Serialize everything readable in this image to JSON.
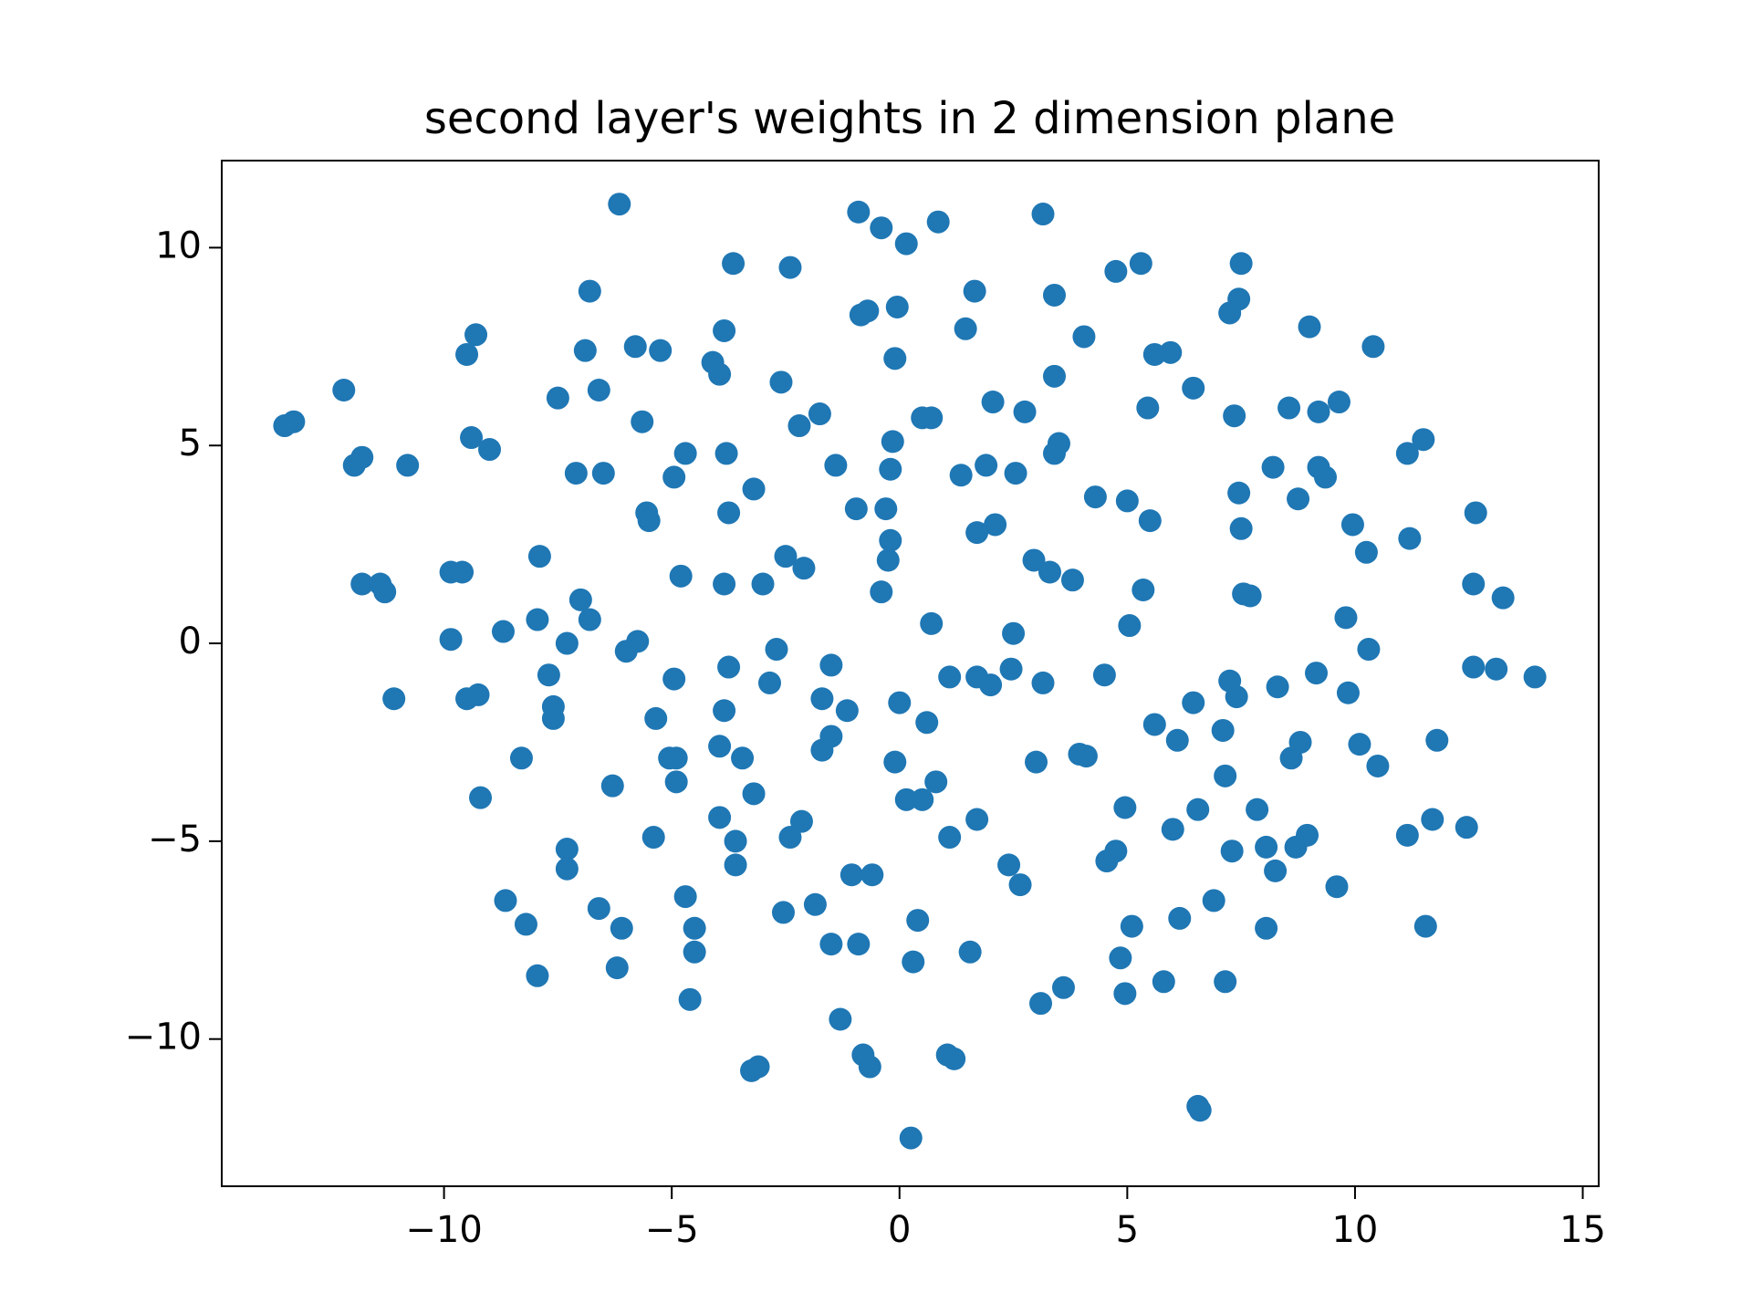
{
  "chart_data": {
    "type": "scatter",
    "title": "second layer's weights in 2 dimension plane",
    "color": "#1f77b4",
    "xlim": [
      -14.88,
      15.35
    ],
    "ylim": [
      -13.72,
      12.2
    ],
    "xticks": [
      {
        "value": -10,
        "label": "−10"
      },
      {
        "value": -5,
        "label": "−5"
      },
      0,
      5,
      10,
      15
    ],
    "yticks": [
      {
        "value": -10,
        "label": "−10"
      },
      {
        "value": -5,
        "label": "−5"
      },
      0,
      5,
      10
    ],
    "x": [
      -13.5,
      -13.3,
      -12.2,
      -11.97,
      -11.8,
      -10.8,
      -11.8,
      -11.4,
      -11.3,
      -11.1,
      -9.5,
      -9.3,
      -9.4,
      -9.0,
      -9.85,
      -9.6,
      -9.85,
      -9.5,
      -9.25,
      -9.2,
      -8.7,
      -8.3,
      -8.65,
      -8.2,
      -7.95,
      -7.9,
      -7.95,
      -7.7,
      -7.6,
      -7.6,
      -7.5,
      -7.1,
      -7.3,
      -7.3,
      -7.3,
      -7.0,
      -6.9,
      -6.8,
      -6.8,
      -6.6,
      -6.5,
      -6.6,
      -6.3,
      -6.15,
      -6.1,
      -6.2,
      -6.0,
      -5.75,
      -5.8,
      -5.65,
      -5.55,
      -5.5,
      -5.25,
      -5.35,
      -5.4,
      -4.95,
      -4.7,
      -4.8,
      -4.95,
      -5.05,
      -4.9,
      -4.9,
      -4.7,
      -4.5,
      -4.5,
      -4.6,
      -4.1,
      -3.95,
      -3.85,
      -3.65,
      -3.8,
      -3.75,
      -3.85,
      -3.75,
      -3.85,
      -3.95,
      -3.95,
      -3.6,
      -3.6,
      -3.45,
      -3.2,
      -3.2,
      -3.25,
      -3.1,
      -3.0,
      -2.85,
      -2.7,
      -2.6,
      -2.5,
      -2.4,
      -2.4,
      -2.55,
      -2.2,
      -2.15,
      -2.1,
      -1.75,
      -1.7,
      -1.7,
      -1.5,
      -1.5,
      -1.4,
      -1.85,
      -1.5,
      -1.3,
      -1.15,
      -0.95,
      -1.05,
      -0.9,
      -0.85,
      -0.7,
      -0.9,
      -0.8,
      -0.65,
      -0.6,
      -0.4,
      -0.3,
      -0.4,
      -0.25,
      -0.2,
      -0.2,
      -0.15,
      -0.1,
      -0.05,
      0.0,
      -0.1,
      0.15,
      0.15,
      0.5,
      0.3,
      0.4,
      0.25,
      0.5,
      0.7,
      0.6,
      0.7,
      0.8,
      0.85,
      1.1,
      1.1,
      1.05,
      1.2,
      1.35,
      1.45,
      1.65,
      1.55,
      1.7,
      1.7,
      1.7,
      1.9,
      2.05,
      2.0,
      2.1,
      2.4,
      2.45,
      2.5,
      2.55,
      2.65,
      2.75,
      2.95,
      3.0,
      3.1,
      3.15,
      3.15,
      3.3,
      3.4,
      3.4,
      3.4,
      3.5,
      3.6,
      3.8,
      3.95,
      4.1,
      4.05,
      4.3,
      4.5,
      4.55,
      4.75,
      4.75,
      4.85,
      4.95,
      4.95,
      5.0,
      5.05,
      5.1,
      5.3,
      5.35,
      5.45,
      5.5,
      5.6,
      5.6,
      5.8,
      5.95,
      6.0,
      6.1,
      6.15,
      6.45,
      6.45,
      6.55,
      6.55,
      6.6,
      6.9,
      7.1,
      7.15,
      7.15,
      7.25,
      7.25,
      7.3,
      7.35,
      7.4,
      7.45,
      7.45,
      7.5,
      7.5,
      7.55,
      7.7,
      7.85,
      8.05,
      8.05,
      8.2,
      8.3,
      8.25,
      8.55,
      8.6,
      8.7,
      8.75,
      8.8,
      8.95,
      9.0,
      9.15,
      9.2,
      9.2,
      9.35,
      9.65,
      9.6,
      9.8,
      9.85,
      9.95,
      10.1,
      10.25,
      10.3,
      10.4,
      10.5,
      11.15,
      11.15,
      11.2,
      11.5,
      11.55,
      11.7,
      11.8,
      12.45,
      12.6,
      12.6,
      12.65,
      13.1,
      13.25,
      13.95
    ],
    "values": [
      5.5,
      5.6,
      6.4,
      4.5,
      4.7,
      4.5,
      1.5,
      1.5,
      1.3,
      -1.4,
      7.3,
      7.8,
      5.2,
      4.9,
      1.8,
      1.8,
      0.1,
      -1.4,
      -1.3,
      -3.9,
      0.3,
      -2.9,
      -6.5,
      -7.1,
      -8.4,
      2.2,
      0.6,
      -0.8,
      -1.6,
      -1.9,
      6.2,
      4.3,
      0.0,
      -5.2,
      -5.7,
      1.1,
      7.4,
      0.6,
      8.9,
      6.4,
      4.3,
      -6.7,
      -3.6,
      11.1,
      -7.2,
      -8.2,
      -0.2,
      0.05,
      7.5,
      5.6,
      3.3,
      3.1,
      7.4,
      -1.9,
      -4.9,
      4.2,
      4.8,
      1.7,
      -0.9,
      -2.9,
      -2.9,
      -3.5,
      -6.4,
      -7.2,
      -7.8,
      -9.0,
      7.1,
      6.8,
      7.9,
      9.6,
      4.8,
      3.3,
      1.5,
      -0.6,
      -1.7,
      -2.6,
      -4.4,
      -5.0,
      -5.6,
      -2.9,
      3.9,
      -3.8,
      -10.8,
      -10.7,
      1.5,
      -1.0,
      -0.15,
      6.6,
      2.2,
      9.5,
      -4.9,
      -6.8,
      5.5,
      -4.5,
      1.9,
      5.8,
      -1.4,
      -2.7,
      -2.35,
      -0.55,
      4.5,
      -6.6,
      -7.6,
      -9.5,
      -1.7,
      3.4,
      -5.85,
      10.9,
      8.3,
      8.4,
      -7.6,
      -10.4,
      -10.7,
      -5.85,
      10.5,
      3.4,
      1.3,
      2.1,
      2.6,
      4.4,
      5.1,
      7.2,
      8.5,
      -1.5,
      -3.0,
      10.1,
      -3.95,
      -3.95,
      -8.05,
      -7.0,
      -12.5,
      5.7,
      5.7,
      -2.0,
      0.5,
      -3.5,
      10.65,
      -0.85,
      -4.9,
      -10.4,
      -10.5,
      4.25,
      7.95,
      8.9,
      -7.8,
      -0.85,
      -4.45,
      2.8,
      4.5,
      6.1,
      -1.05,
      3.0,
      -5.6,
      -0.65,
      0.25,
      4.3,
      -6.1,
      5.85,
      2.1,
      -3.0,
      -9.1,
      -1.0,
      10.85,
      1.8,
      6.75,
      8.8,
      4.8,
      5.05,
      -8.7,
      1.6,
      -2.8,
      -2.85,
      7.75,
      3.7,
      -0.8,
      -5.5,
      -5.25,
      9.4,
      -7.95,
      -4.15,
      -8.85,
      3.6,
      0.45,
      -7.15,
      9.6,
      1.35,
      5.95,
      3.1,
      7.3,
      -2.05,
      -8.55,
      7.35,
      -4.7,
      -2.45,
      -6.95,
      -1.5,
      6.45,
      -4.2,
      -11.7,
      -11.8,
      -6.5,
      -2.2,
      -3.35,
      -8.55,
      -0.95,
      8.35,
      -5.25,
      5.75,
      -1.35,
      8.7,
      3.8,
      9.6,
      2.9,
      1.25,
      1.2,
      -4.2,
      -5.15,
      -7.2,
      4.45,
      -1.1,
      -5.75,
      5.95,
      -2.9,
      -5.15,
      3.65,
      -2.5,
      -4.85,
      8.0,
      -0.75,
      5.85,
      4.45,
      4.2,
      6.1,
      -6.15,
      0.65,
      -1.25,
      3.0,
      -2.55,
      2.3,
      -0.15,
      7.5,
      -3.1,
      4.8,
      -4.85,
      2.65,
      5.15,
      -7.15,
      -4.45,
      -2.45,
      -4.65,
      -0.6,
      1.5,
      3.3,
      -0.65,
      1.15,
      -0.85
    ]
  }
}
